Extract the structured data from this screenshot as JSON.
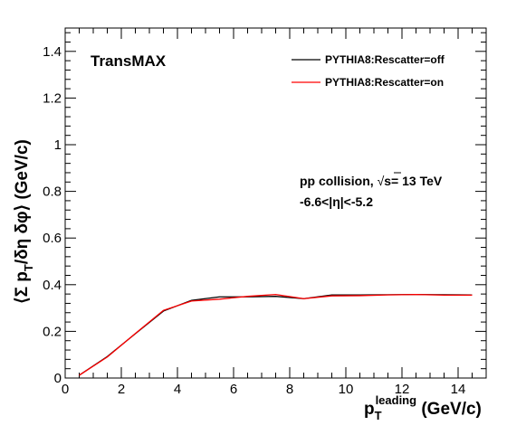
{
  "chart_data": {
    "type": "line",
    "panel_label": "TransMAX",
    "xlabel": {
      "main": "p",
      "sub": "T",
      "sup": "leading",
      "unit": " (GeV/c)"
    },
    "ylabel": {
      "pre": "⟨Σ p",
      "sub": "T",
      "post": "/δη  δφ⟩ (GeV/c)"
    },
    "xlim": [
      0,
      15
    ],
    "ylim": [
      0,
      1.5
    ],
    "x_ticks": [
      0,
      2,
      4,
      6,
      8,
      10,
      12,
      14
    ],
    "y_ticks": [
      0,
      0.2,
      0.4,
      0.6,
      0.8,
      1,
      1.2,
      1.4
    ],
    "x_tick_labels": [
      "0",
      "2",
      "4",
      "6",
      "8",
      "10",
      "12",
      "14"
    ],
    "y_tick_labels": [
      "0",
      "0.2",
      "0.4",
      "0.6",
      "0.8",
      "1",
      "1.2",
      "1.4"
    ],
    "annotations": {
      "line1_pre": "pp collision, ",
      "line1_sqrt": "√",
      "line1_post": "s= 13 TeV",
      "line2": "-6.6<|η|<-5.2"
    },
    "legend_position": "top-right",
    "grid": false,
    "x": [
      0.5,
      1.5,
      2.5,
      3.5,
      4.5,
      5.5,
      6.5,
      7.5,
      8.5,
      9.5,
      10.5,
      11.5,
      12.5,
      13.5,
      14.5
    ],
    "series": [
      {
        "name": "PYTHIA8:Rescatter=off",
        "color": "#000000",
        "values": [
          0.012,
          0.092,
          0.19,
          0.287,
          0.333,
          0.348,
          0.348,
          0.35,
          0.34,
          0.356,
          0.356,
          0.357,
          0.358,
          0.357,
          0.356
        ]
      },
      {
        "name": "PYTHIA8:Rescatter=on",
        "color": "#ff0000",
        "values": [
          0.012,
          0.09,
          0.191,
          0.29,
          0.33,
          0.338,
          0.35,
          0.358,
          0.34,
          0.352,
          0.353,
          0.356,
          0.358,
          0.355,
          0.355
        ]
      }
    ]
  }
}
